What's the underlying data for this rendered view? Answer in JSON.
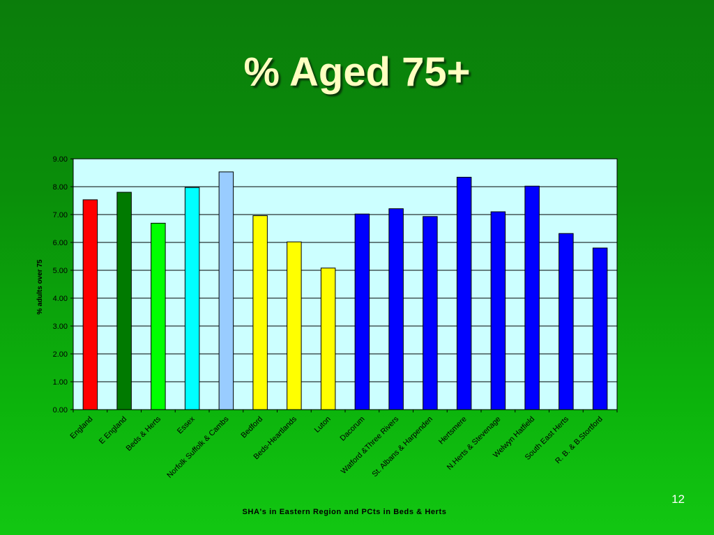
{
  "slide": {
    "title": "% Aged 75+",
    "number": "12"
  },
  "chart_data": {
    "type": "bar",
    "title": "",
    "xlabel": "SHA's in Eastern Region and PCts in Beds & Herts",
    "ylabel": "% adults over 75",
    "ylim": [
      0,
      9
    ],
    "yticks": [
      "0.00",
      "1.00",
      "2.00",
      "3.00",
      "4.00",
      "5.00",
      "6.00",
      "7.00",
      "8.00",
      "9.00"
    ],
    "grid": true,
    "legend": "none",
    "plot_background": "#ccffff",
    "categories": [
      "England",
      "E England",
      "Beds & Herts",
      "Essex",
      "Norfolk Suffolk & Cambs",
      "Bedford",
      "Beds-Heartlands",
      "Luton",
      "Dacorum",
      "Watford  &Three Rivers",
      "St. Albans & Harpenden",
      "Hertsmere",
      "N.Herts &  Stevenage",
      "Welwyn Hatfield",
      "South East Herts",
      "R. B. & B.Stortford"
    ],
    "values": [
      7.53,
      7.8,
      6.69,
      7.97,
      8.53,
      6.96,
      6.02,
      5.08,
      7.02,
      7.21,
      6.93,
      8.34,
      7.1,
      8.02,
      6.32,
      5.8
    ],
    "colors": [
      "#ff0000",
      "#007a00",
      "#00ff00",
      "#00ffff",
      "#99ccff",
      "#ffff00",
      "#ffff00",
      "#ffff00",
      "#0000ff",
      "#0000ff",
      "#0000ff",
      "#0000ff",
      "#0000ff",
      "#0000ff",
      "#0000ff",
      "#0000ff"
    ]
  }
}
